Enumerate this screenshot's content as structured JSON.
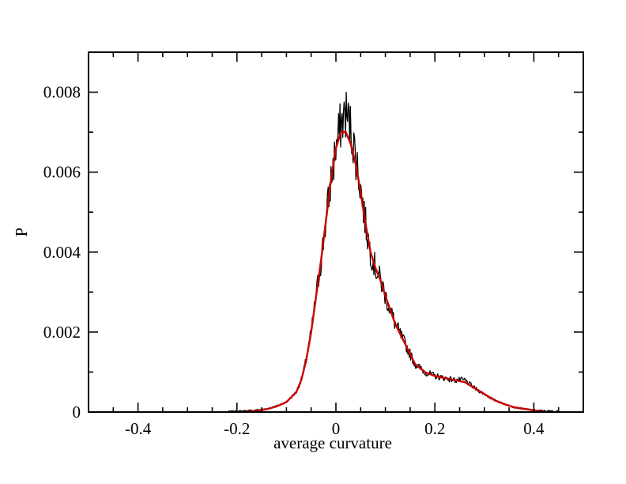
{
  "chart_data": {
    "type": "line",
    "xlabel": "average curvature",
    "ylabel": "P",
    "xlim": [
      -0.5,
      0.5
    ],
    "ylim": [
      0,
      0.009
    ],
    "x_ticks": [
      -0.4,
      -0.2,
      0,
      0.2,
      0.4
    ],
    "x_tick_labels": [
      "-0.4",
      "-0.2",
      "0",
      "0.2",
      "0.4"
    ],
    "y_ticks": [
      0,
      0.002,
      0.004,
      0.006,
      0.008
    ],
    "y_tick_labels": [
      "0",
      "0.002",
      "0.004",
      "0.006",
      "0.008"
    ],
    "grid": false,
    "legend": "none",
    "series": [
      {
        "color": "#000000",
        "style": "noisy",
        "x": [
          -0.22,
          -0.2,
          -0.18,
          -0.16,
          -0.14,
          -0.12,
          -0.1,
          -0.08,
          -0.07,
          -0.06,
          -0.05,
          -0.04,
          -0.03,
          -0.02,
          -0.01,
          0,
          0.01,
          0.02,
          0.03,
          0.04,
          0.05,
          0.06,
          0.07,
          0.08,
          0.09,
          0.1,
          0.12,
          0.14,
          0.16,
          0.18,
          0.2,
          0.22,
          0.24,
          0.26,
          0.28,
          0.3,
          0.32,
          0.34,
          0.36,
          0.38,
          0.4,
          0.42,
          0.44,
          0.46
        ],
        "y": [
          1e-05,
          2e-05,
          3e-05,
          5e-05,
          8e-05,
          0.00015,
          0.00025,
          0.0005,
          0.0008,
          0.0013,
          0.002,
          0.0029,
          0.0038,
          0.0048,
          0.0058,
          0.0066,
          0.0072,
          0.0075,
          0.0071,
          0.0064,
          0.0056,
          0.0047,
          0.004,
          0.0036,
          0.0033,
          0.0029,
          0.0022,
          0.0017,
          0.0012,
          0.001,
          0.0009,
          0.00085,
          0.0008,
          0.0008,
          0.0006,
          0.00045,
          0.0003,
          0.0002,
          0.00012,
          8e-05,
          5e-05,
          3e-05,
          2e-05,
          1e-05
        ]
      },
      {
        "color": "#cc0000",
        "style": "smooth",
        "x": [
          -0.18,
          -0.16,
          -0.14,
          -0.12,
          -0.1,
          -0.08,
          -0.07,
          -0.06,
          -0.05,
          -0.04,
          -0.03,
          -0.02,
          -0.01,
          0,
          0.01,
          0.02,
          0.03,
          0.04,
          0.05,
          0.06,
          0.07,
          0.08,
          0.09,
          0.1,
          0.12,
          0.14,
          0.16,
          0.18,
          0.2,
          0.22,
          0.24,
          0.26,
          0.28,
          0.3,
          0.32,
          0.34,
          0.36,
          0.38,
          0.4,
          0.42
        ],
        "y": [
          1e-05,
          3e-05,
          7e-05,
          0.00014,
          0.00025,
          0.0005,
          0.0008,
          0.0013,
          0.002,
          0.0029,
          0.0038,
          0.0048,
          0.0058,
          0.0066,
          0.007,
          0.007,
          0.0067,
          0.0062,
          0.0055,
          0.0047,
          0.004,
          0.0036,
          0.0033,
          0.0029,
          0.0022,
          0.0017,
          0.0012,
          0.001,
          0.0009,
          0.00085,
          0.0008,
          0.00075,
          0.0006,
          0.00045,
          0.0003,
          0.0002,
          0.00012,
          8e-05,
          4e-05,
          1e-05
        ]
      }
    ]
  }
}
